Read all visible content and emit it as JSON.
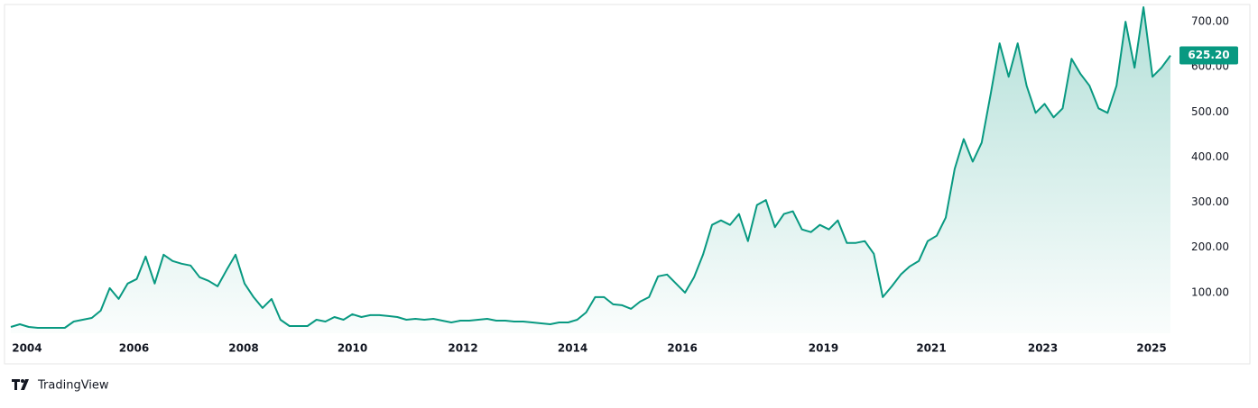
{
  "chart_data": {
    "type": "area",
    "values": [
      24,
      30,
      24,
      22,
      22,
      22,
      22,
      36,
      40,
      44,
      60,
      110,
      86,
      120,
      130,
      180,
      120,
      184,
      170,
      164,
      160,
      134,
      126,
      114,
      150,
      184,
      120,
      90,
      66,
      86,
      40,
      26,
      26,
      26,
      40,
      36,
      46,
      40,
      52,
      46,
      50,
      50,
      48,
      46,
      40,
      42,
      40,
      42,
      38,
      34,
      38,
      38,
      40,
      42,
      38,
      38,
      36,
      36,
      34,
      32,
      30,
      34,
      34,
      40,
      56,
      90,
      90,
      74,
      72,
      64,
      80,
      90,
      136,
      140,
      120,
      100,
      134,
      184,
      250,
      260,
      250,
      274,
      214,
      294,
      305,
      245,
      274,
      280,
      240,
      234,
      250,
      240,
      260,
      210,
      210,
      214,
      186,
      90,
      114,
      140,
      158,
      170,
      214,
      226,
      266,
      374,
      440,
      390,
      432,
      540,
      652,
      578,
      652,
      558,
      498,
      518,
      488,
      508,
      618,
      584,
      558,
      508,
      498,
      558,
      700,
      598,
      732,
      578,
      598,
      625.2
    ],
    "value_labels": [
      null,
      null,
      null,
      null,
      null,
      null,
      null,
      null,
      null,
      null,
      null,
      null,
      null,
      null,
      null,
      null,
      null,
      null,
      null,
      null,
      null,
      null,
      null,
      null,
      null,
      null,
      null,
      null,
      null,
      null,
      null,
      null,
      null,
      null,
      null,
      null,
      null,
      null,
      null,
      null,
      null,
      null,
      null,
      null,
      null,
      null,
      null,
      null,
      null,
      null,
      null,
      null,
      null,
      null,
      null,
      null,
      null,
      null,
      null,
      null,
      null,
      null,
      null,
      null,
      null,
      null,
      null,
      null,
      null,
      null,
      null,
      null,
      null,
      null,
      null,
      null,
      null,
      null,
      null,
      null,
      null,
      null,
      null,
      null,
      null,
      null,
      null,
      null,
      null,
      null,
      null,
      null,
      null,
      null,
      null,
      null,
      null,
      null,
      null,
      null,
      null,
      null,
      null,
      null,
      null,
      null,
      null,
      null,
      null,
      null,
      null,
      null,
      null,
      null,
      null,
      null,
      null,
      null,
      null,
      null,
      null,
      null,
      null,
      null,
      null,
      null,
      null,
      null,
      null,
      "625.20"
    ],
    "color": "#089981",
    "xlim": [
      0,
      129
    ],
    "xticks": [
      {
        "value": 1.8,
        "label": "2004"
      },
      {
        "value": 13.7,
        "label": "2006"
      },
      {
        "value": 25.9,
        "label": "2008"
      },
      {
        "value": 38,
        "label": "2010"
      },
      {
        "value": 50.3,
        "label": "2012"
      },
      {
        "value": 62.5,
        "label": "2014"
      },
      {
        "value": 74.7,
        "label": "2016"
      },
      {
        "value": 90.4,
        "label": "2019"
      },
      {
        "value": 102.4,
        "label": "2021"
      },
      {
        "value": 114.8,
        "label": "2023"
      },
      {
        "value": 126.9,
        "label": "2025"
      }
    ],
    "ylim": [
      10,
      738
    ],
    "yticks": [
      {
        "value": 100,
        "label": "100.00"
      },
      {
        "value": 200,
        "label": "200.00"
      },
      {
        "value": 300,
        "label": "300.00"
      },
      {
        "value": 400,
        "label": "400.00"
      },
      {
        "value": 500,
        "label": "500.00"
      },
      {
        "value": 600,
        "label": "600.00"
      },
      {
        "value": 700,
        "label": "700.00"
      }
    ],
    "grid": false
  },
  "footer": {
    "brand": "TradingView"
  }
}
